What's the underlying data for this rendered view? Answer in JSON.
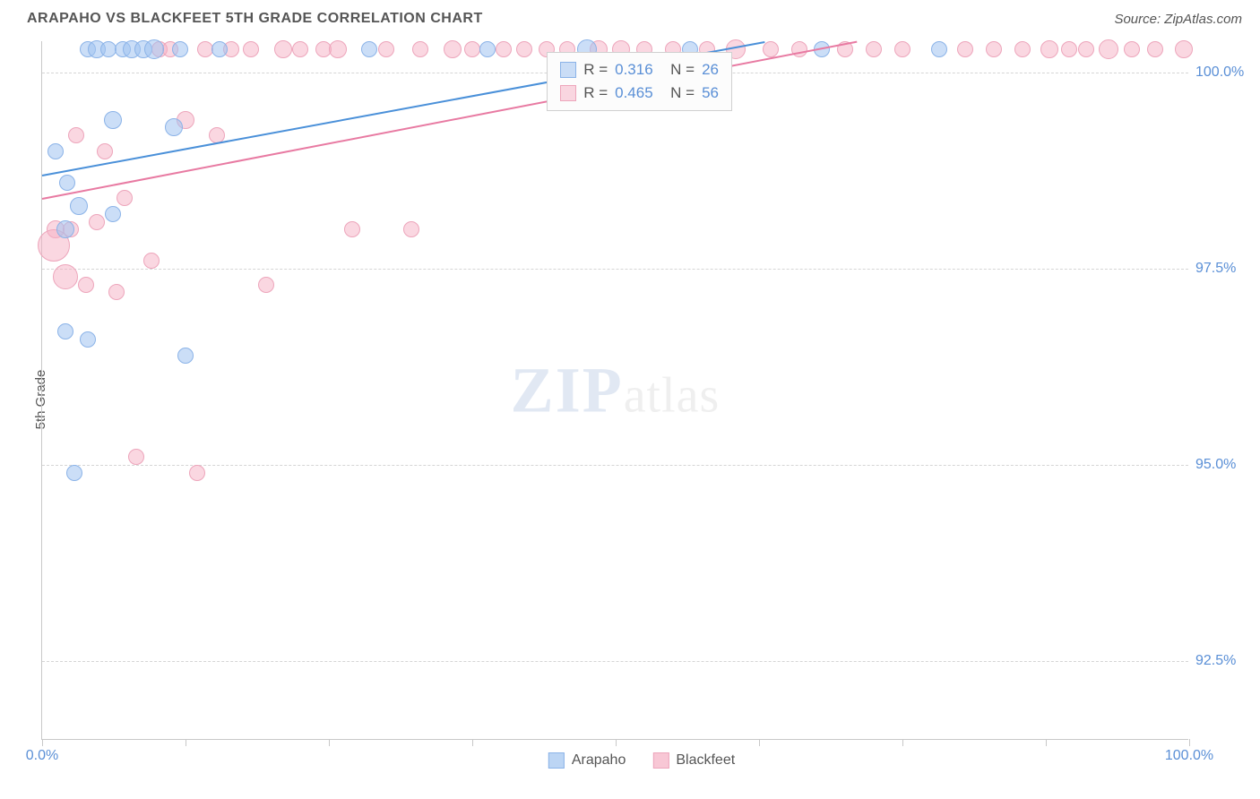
{
  "title": "ARAPAHO VS BLACKFEET 5TH GRADE CORRELATION CHART",
  "source": "Source: ZipAtlas.com",
  "ylabel": "5th Grade",
  "watermark_zip": "ZIP",
  "watermark_atlas": "atlas",
  "chart": {
    "type": "scatter",
    "xlim": [
      0,
      100
    ],
    "ylim": [
      91.5,
      100.4
    ],
    "y_ticks": [
      92.5,
      95.0,
      97.5,
      100.0
    ],
    "y_tick_labels": [
      "92.5%",
      "95.0%",
      "97.5%",
      "100.0%"
    ],
    "x_tick_positions": [
      0,
      12.5,
      25,
      37.5,
      50,
      62.5,
      75,
      87.5,
      100
    ],
    "x_axis_labels": [
      {
        "pos": 0,
        "text": "0.0%"
      },
      {
        "pos": 100,
        "text": "100.0%"
      }
    ],
    "plot_bg": "#ffffff",
    "grid_color": "#d5d5d5",
    "axis_color": "#c8c8c8",
    "series": [
      {
        "name": "Arapaho",
        "fill": "rgba(160,195,240,0.55)",
        "stroke": "#8bb3e8",
        "line_color": "#4a90d9",
        "trend": {
          "x1": 0,
          "y1": 98.7,
          "x2": 63,
          "y2": 100.4
        },
        "R": "0.316",
        "N": "26",
        "points": [
          {
            "x": 1.2,
            "y": 99.0,
            "r": 9
          },
          {
            "x": 2.2,
            "y": 98.6,
            "r": 9
          },
          {
            "x": 3.2,
            "y": 98.3,
            "r": 10
          },
          {
            "x": 2.8,
            "y": 94.9,
            "r": 9
          },
          {
            "x": 4.0,
            "y": 96.6,
            "r": 9
          },
          {
            "x": 2.0,
            "y": 96.7,
            "r": 9
          },
          {
            "x": 6.2,
            "y": 99.4,
            "r": 10
          },
          {
            "x": 4.0,
            "y": 100.3,
            "r": 9
          },
          {
            "x": 4.8,
            "y": 100.3,
            "r": 10
          },
          {
            "x": 5.8,
            "y": 100.3,
            "r": 9
          },
          {
            "x": 7.0,
            "y": 100.3,
            "r": 9
          },
          {
            "x": 7.8,
            "y": 100.3,
            "r": 10
          },
          {
            "x": 8.8,
            "y": 100.3,
            "r": 10
          },
          {
            "x": 9.8,
            "y": 100.3,
            "r": 11
          },
          {
            "x": 12.0,
            "y": 100.3,
            "r": 9
          },
          {
            "x": 15.5,
            "y": 100.3,
            "r": 9
          },
          {
            "x": 11.5,
            "y": 99.3,
            "r": 10
          },
          {
            "x": 12.5,
            "y": 96.4,
            "r": 9
          },
          {
            "x": 28.5,
            "y": 100.3,
            "r": 9
          },
          {
            "x": 38.8,
            "y": 100.3,
            "r": 9
          },
          {
            "x": 47.5,
            "y": 100.3,
            "r": 11
          },
          {
            "x": 56.5,
            "y": 100.3,
            "r": 9
          },
          {
            "x": 68.0,
            "y": 100.3,
            "r": 9
          },
          {
            "x": 78.2,
            "y": 100.3,
            "r": 9
          },
          {
            "x": 6.2,
            "y": 98.2,
            "r": 9
          },
          {
            "x": 2.0,
            "y": 98.0,
            "r": 10
          }
        ]
      },
      {
        "name": "Blackfeet",
        "fill": "rgba(245,175,195,0.50)",
        "stroke": "#eda5bb",
        "line_color": "#e87aa2",
        "trend": {
          "x1": 0,
          "y1": 98.4,
          "x2": 71,
          "y2": 100.4
        },
        "R": "0.465",
        "N": "56",
        "points": [
          {
            "x": 1.2,
            "y": 98.0,
            "r": 10
          },
          {
            "x": 1.0,
            "y": 97.8,
            "r": 18
          },
          {
            "x": 2.0,
            "y": 97.4,
            "r": 14
          },
          {
            "x": 2.5,
            "y": 98.0,
            "r": 9
          },
          {
            "x": 3.0,
            "y": 99.2,
            "r": 9
          },
          {
            "x": 3.8,
            "y": 97.3,
            "r": 9
          },
          {
            "x": 4.8,
            "y": 98.1,
            "r": 9
          },
          {
            "x": 5.5,
            "y": 99.0,
            "r": 9
          },
          {
            "x": 6.5,
            "y": 97.2,
            "r": 9
          },
          {
            "x": 7.2,
            "y": 98.4,
            "r": 9
          },
          {
            "x": 8.2,
            "y": 95.1,
            "r": 9
          },
          {
            "x": 9.5,
            "y": 97.6,
            "r": 9
          },
          {
            "x": 10.2,
            "y": 100.3,
            "r": 9
          },
          {
            "x": 11.2,
            "y": 100.3,
            "r": 9
          },
          {
            "x": 12.5,
            "y": 99.4,
            "r": 10
          },
          {
            "x": 13.5,
            "y": 94.9,
            "r": 9
          },
          {
            "x": 14.2,
            "y": 100.3,
            "r": 9
          },
          {
            "x": 15.2,
            "y": 99.2,
            "r": 9
          },
          {
            "x": 16.5,
            "y": 100.3,
            "r": 9
          },
          {
            "x": 18.2,
            "y": 100.3,
            "r": 9
          },
          {
            "x": 19.5,
            "y": 97.3,
            "r": 9
          },
          {
            "x": 21.0,
            "y": 100.3,
            "r": 10
          },
          {
            "x": 22.5,
            "y": 100.3,
            "r": 9
          },
          {
            "x": 24.5,
            "y": 100.3,
            "r": 9
          },
          {
            "x": 27.0,
            "y": 98.0,
            "r": 9
          },
          {
            "x": 25.8,
            "y": 100.3,
            "r": 10
          },
          {
            "x": 30.0,
            "y": 100.3,
            "r": 9
          },
          {
            "x": 32.2,
            "y": 98.0,
            "r": 9
          },
          {
            "x": 33.0,
            "y": 100.3,
            "r": 9
          },
          {
            "x": 35.8,
            "y": 100.3,
            "r": 10
          },
          {
            "x": 37.5,
            "y": 100.3,
            "r": 9
          },
          {
            "x": 40.2,
            "y": 100.3,
            "r": 9
          },
          {
            "x": 42.0,
            "y": 100.3,
            "r": 9
          },
          {
            "x": 44.0,
            "y": 100.3,
            "r": 9
          },
          {
            "x": 45.8,
            "y": 100.3,
            "r": 9
          },
          {
            "x": 48.5,
            "y": 100.3,
            "r": 10
          },
          {
            "x": 50.5,
            "y": 100.3,
            "r": 10
          },
          {
            "x": 52.5,
            "y": 100.3,
            "r": 9
          },
          {
            "x": 55.0,
            "y": 100.3,
            "r": 9
          },
          {
            "x": 58.0,
            "y": 100.3,
            "r": 9
          },
          {
            "x": 60.5,
            "y": 100.3,
            "r": 11
          },
          {
            "x": 63.5,
            "y": 100.3,
            "r": 9
          },
          {
            "x": 66.0,
            "y": 100.3,
            "r": 9
          },
          {
            "x": 70.0,
            "y": 100.3,
            "r": 9
          },
          {
            "x": 72.5,
            "y": 100.3,
            "r": 9
          },
          {
            "x": 75.0,
            "y": 100.3,
            "r": 9
          },
          {
            "x": 80.5,
            "y": 100.3,
            "r": 9
          },
          {
            "x": 83.0,
            "y": 100.3,
            "r": 9
          },
          {
            "x": 85.5,
            "y": 100.3,
            "r": 9
          },
          {
            "x": 87.8,
            "y": 100.3,
            "r": 10
          },
          {
            "x": 89.5,
            "y": 100.3,
            "r": 9
          },
          {
            "x": 91.0,
            "y": 100.3,
            "r": 9
          },
          {
            "x": 93.0,
            "y": 100.3,
            "r": 11
          },
          {
            "x": 95.0,
            "y": 100.3,
            "r": 9
          },
          {
            "x": 97.0,
            "y": 100.3,
            "r": 9
          },
          {
            "x": 99.5,
            "y": 100.3,
            "r": 10
          }
        ]
      }
    ],
    "stats_box": {
      "left_pct": 44,
      "top_pct": 1.5
    },
    "legend_items": [
      {
        "name": "Arapaho",
        "fill": "rgba(160,195,240,0.7)",
        "stroke": "#8bb3e8"
      },
      {
        "name": "Blackfeet",
        "fill": "rgba(245,175,195,0.7)",
        "stroke": "#eda5bb"
      }
    ]
  },
  "stat_labels": {
    "R": "R =",
    "N": "N ="
  }
}
